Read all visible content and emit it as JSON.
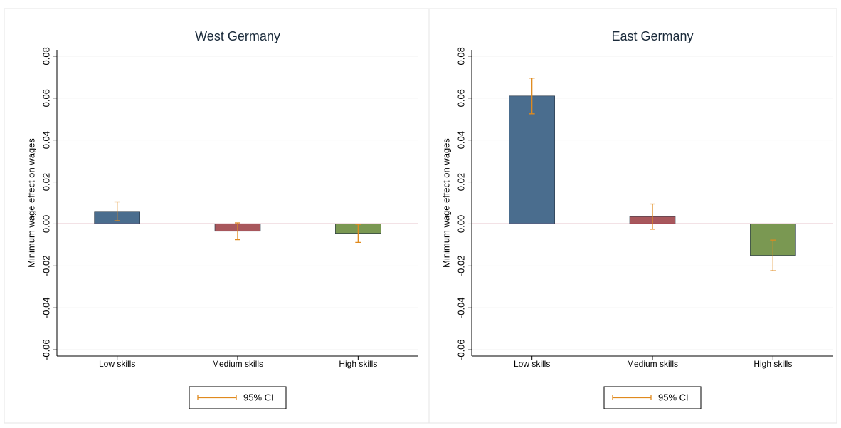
{
  "chart_data": [
    {
      "type": "bar",
      "title": "West Germany",
      "ylabel": "Minimum wage effect on wages",
      "categories": [
        "Low skills",
        "Medium skills",
        "High skills"
      ],
      "values": [
        0.006,
        -0.0035,
        -0.0045
      ],
      "errors": [
        0.0045,
        0.004,
        0.0043
      ],
      "colors": [
        "#4a6d8e",
        "#a8575c",
        "#7a9852"
      ],
      "error_color": "#e08a1e",
      "error_label": "95% CI",
      "reference_line": {
        "value": 0,
        "color": "#a0173f"
      },
      "ylim": [
        -0.063,
        0.083
      ],
      "yticks": [
        -0.06,
        -0.04,
        -0.02,
        {
          "value": 0,
          "label": "0.00"
        },
        0.02,
        0.04,
        0.06,
        0.08
      ],
      "grid": true
    },
    {
      "type": "bar",
      "title": "East Germany",
      "ylabel": "Minimum wage effect on wages",
      "categories": [
        "Low skills",
        "Medium skills",
        "High skills"
      ],
      "values": [
        0.061,
        0.0035,
        -0.015
      ],
      "errors": [
        0.0085,
        0.006,
        0.0073
      ],
      "colors": [
        "#4a6d8e",
        "#a8575c",
        "#7a9852"
      ],
      "error_color": "#e08a1e",
      "error_label": "95% CI",
      "reference_line": {
        "value": 0,
        "color": "#a0173f"
      },
      "ylim": [
        -0.063,
        0.083
      ],
      "yticks": [
        -0.06,
        -0.04,
        -0.02,
        {
          "value": 0,
          "label": "0.00"
        },
        0.02,
        0.04,
        0.06,
        0.08
      ],
      "grid": true
    }
  ]
}
